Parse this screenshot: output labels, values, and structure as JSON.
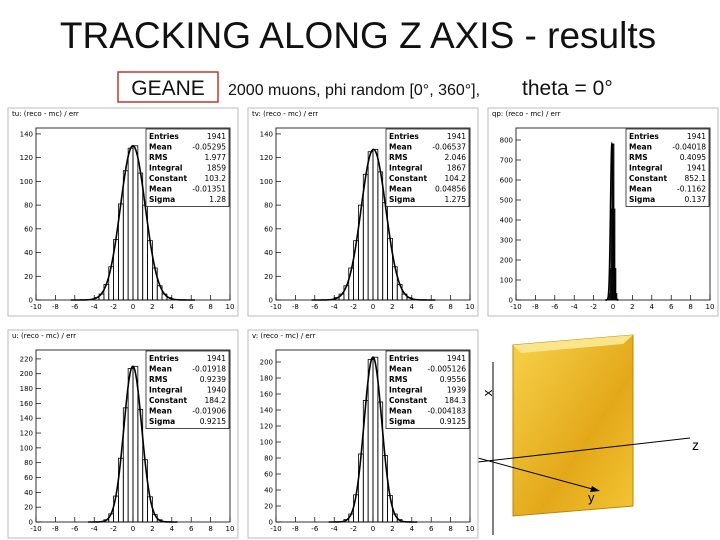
{
  "header": {
    "title": "TRACKING ALONG Z AXIS - results",
    "tag": "GEANE",
    "subtitle": "2000 muons, phi random [0°, 360°],",
    "theta": "theta = 0°"
  },
  "chart_data": [
    {
      "type": "histogram",
      "title": "tu: (reco - mc) / err",
      "bins": [
        -4,
        -3.5,
        -3,
        -2.5,
        -2,
        -1.5,
        -1,
        -0.5,
        0,
        0.5,
        1,
        1.5,
        2,
        2.5,
        3,
        3.5,
        4
      ],
      "values": [
        2,
        5,
        13,
        28,
        51,
        81,
        109,
        128,
        130,
        107,
        80,
        50,
        27,
        12,
        5,
        2
      ],
      "xlim": [
        -10,
        10
      ],
      "xticks": [
        -10,
        -8,
        -6,
        -4,
        -2,
        0,
        2,
        4,
        6,
        8,
        10
      ],
      "ylim": [
        0,
        145
      ],
      "yticks": [
        0,
        20,
        40,
        60,
        80,
        100,
        120,
        140
      ],
      "stats": [
        {
          "name": "Entries",
          "value": 1941
        },
        {
          "name": "Mean",
          "value": -0.05295
        },
        {
          "name": "RMS",
          "value": 1.977
        },
        {
          "name": "Integral",
          "value": 1859
        },
        {
          "name": "Constant",
          "value": 103.2
        },
        {
          "name": "Mean",
          "value": -0.01351
        },
        {
          "name": "Sigma",
          "value": 1.28
        }
      ]
    },
    {
      "type": "histogram",
      "title": "tv: (reco - mc) / err",
      "bins": [
        -4,
        -3.5,
        -3,
        -2.5,
        -2,
        -1.5,
        -1,
        -0.5,
        0,
        0.5,
        1,
        1.5,
        2,
        2.5,
        3,
        3.5,
        4
      ],
      "values": [
        2,
        5,
        12,
        27,
        50,
        80,
        106,
        125,
        127,
        108,
        82,
        52,
        28,
        13,
        5,
        2
      ],
      "xlim": [
        -10,
        10
      ],
      "xticks": [
        -10,
        -8,
        -6,
        -4,
        -2,
        0,
        2,
        4,
        6,
        8,
        10
      ],
      "ylim": [
        0,
        145
      ],
      "yticks": [
        0,
        20,
        40,
        60,
        80,
        100,
        120,
        140
      ],
      "stats": [
        {
          "name": "Entries",
          "value": 1941
        },
        {
          "name": "Mean",
          "value": -0.06537
        },
        {
          "name": "RMS",
          "value": 2.046
        },
        {
          "name": "Integral",
          "value": 1867
        },
        {
          "name": "Constant",
          "value": 104.2
        },
        {
          "name": "Mean",
          "value": 0.04856
        },
        {
          "name": "Sigma",
          "value": 1.275
        }
      ]
    },
    {
      "type": "histogram",
      "title": "qp: (reco - mc) / err",
      "bins": [
        -0.6,
        -0.5,
        -0.4,
        -0.3,
        -0.2,
        -0.1,
        0,
        0.1,
        0.2,
        0.3,
        0.4,
        0.5,
        0.6
      ],
      "values": [
        0,
        4,
        32,
        157,
        455,
        780,
        780,
        455,
        157,
        32,
        4,
        0
      ],
      "xlim": [
        -10,
        10
      ],
      "xticks": [
        -10,
        -8,
        -6,
        -4,
        -2,
        0,
        2,
        4,
        6,
        8,
        10
      ],
      "ylim": [
        0,
        860
      ],
      "yticks": [
        0,
        100,
        200,
        300,
        400,
        500,
        600,
        700,
        800
      ],
      "stats": [
        {
          "name": "Entries",
          "value": 1941
        },
        {
          "name": "Mean",
          "value": -0.04018
        },
        {
          "name": "RMS",
          "value": 0.4095
        },
        {
          "name": "Integral",
          "value": 1941
        },
        {
          "name": "Constant",
          "value": 852.1
        },
        {
          "name": "Mean",
          "value": -0.1162
        },
        {
          "name": "Sigma",
          "value": 0.137
        }
      ]
    },
    {
      "type": "histogram",
      "title": "u: (reco - mc) / err",
      "bins": [
        -4,
        -3.5,
        -3,
        -2.5,
        -2,
        -1.5,
        -1,
        -0.5,
        0,
        0.5,
        1,
        1.5,
        2,
        2.5,
        3,
        3.5,
        4
      ],
      "values": [
        0,
        0,
        3,
        11,
        35,
        86,
        154,
        207,
        210,
        152,
        84,
        34,
        10,
        3,
        0,
        0
      ],
      "xlim": [
        -10,
        10
      ],
      "xticks": [
        -10,
        -8,
        -6,
        -4,
        -2,
        0,
        2,
        4,
        6,
        8,
        10
      ],
      "ylim": [
        0,
        232
      ],
      "yticks": [
        0,
        20,
        40,
        60,
        80,
        100,
        120,
        140,
        160,
        180,
        200,
        220
      ],
      "stats": [
        {
          "name": "Entries",
          "value": 1941
        },
        {
          "name": "Mean",
          "value": -0.01918
        },
        {
          "name": "RMS",
          "value": 0.9239
        },
        {
          "name": "Integral",
          "value": 1940
        },
        {
          "name": "Constant",
          "value": 184.2
        },
        {
          "name": "Mean",
          "value": -0.01906
        },
        {
          "name": "Sigma",
          "value": 0.9215
        }
      ]
    },
    {
      "type": "histogram",
      "title": "v: (reco - mc) / err",
      "bins": [
        -4,
        -3.5,
        -3,
        -2.5,
        -2,
        -1.5,
        -1,
        -0.5,
        0,
        0.5,
        1,
        1.5,
        2,
        2.5,
        3,
        3.5,
        4
      ],
      "values": [
        0,
        0,
        3,
        10,
        34,
        85,
        152,
        203,
        206,
        150,
        83,
        33,
        10,
        3,
        0,
        0
      ],
      "xlim": [
        -10,
        10
      ],
      "xticks": [
        -10,
        -8,
        -6,
        -4,
        -2,
        0,
        2,
        4,
        6,
        8,
        10
      ],
      "ylim": [
        0,
        215
      ],
      "yticks": [
        0,
        20,
        40,
        60,
        80,
        100,
        120,
        140,
        160,
        180,
        200
      ],
      "stats": [
        {
          "name": "Entries",
          "value": 1941
        },
        {
          "name": "Mean",
          "value": -0.005126
        },
        {
          "name": "RMS",
          "value": 0.9556
        },
        {
          "name": "Integral",
          "value": 1939
        },
        {
          "name": "Constant",
          "value": 184.3
        },
        {
          "name": "Mean",
          "value": -0.004183
        },
        {
          "name": "Sigma",
          "value": 0.9125
        }
      ]
    }
  ],
  "diagram": {
    "x_label": "x",
    "z_label": "z",
    "y_label": "y"
  }
}
